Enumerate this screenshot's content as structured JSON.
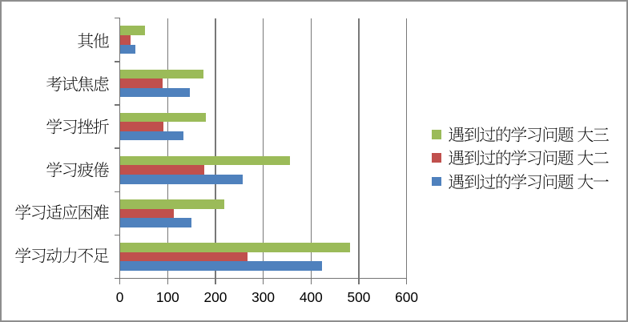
{
  "window": {
    "type": "excel-chart-screenshot",
    "background": "#FFFFFF",
    "border_color": "#8E8E8E"
  },
  "chart_data": {
    "type": "bar",
    "orientation": "horizontal",
    "title": "",
    "categories_top_to_bottom": [
      "其他",
      "考试焦虑",
      "学习挫折",
      "学习疲倦",
      "学习适应困难",
      "学习动力不足"
    ],
    "series_top_to_bottom": [
      {
        "name": "遇到过的学习问题 大三",
        "color": "#9BBB59",
        "values": [
          52,
          175,
          180,
          356,
          219,
          481
        ]
      },
      {
        "name": "遇到过的学习问题 大二",
        "color": "#C0504D",
        "values": [
          23,
          89,
          92,
          176,
          113,
          267
        ]
      },
      {
        "name": "遇到过的学习问题 大一",
        "color": "#4F81BD",
        "values": [
          32,
          147,
          133,
          257,
          150,
          423
        ]
      }
    ],
    "x_axis": {
      "min": 0,
      "max": 600,
      "step": 100,
      "tick_labels": [
        "0",
        "100",
        "200",
        "300",
        "400",
        "500",
        "600"
      ]
    },
    "y_axis_label": "",
    "x_axis_label": "",
    "gridlines": "vertical",
    "legend_position": "right"
  },
  "style": {
    "gridline_color": "#787878",
    "axis_color": "#747474",
    "tick_color": "#747474",
    "label_color": "#000000",
    "plot_background": "#FFFFFF"
  }
}
